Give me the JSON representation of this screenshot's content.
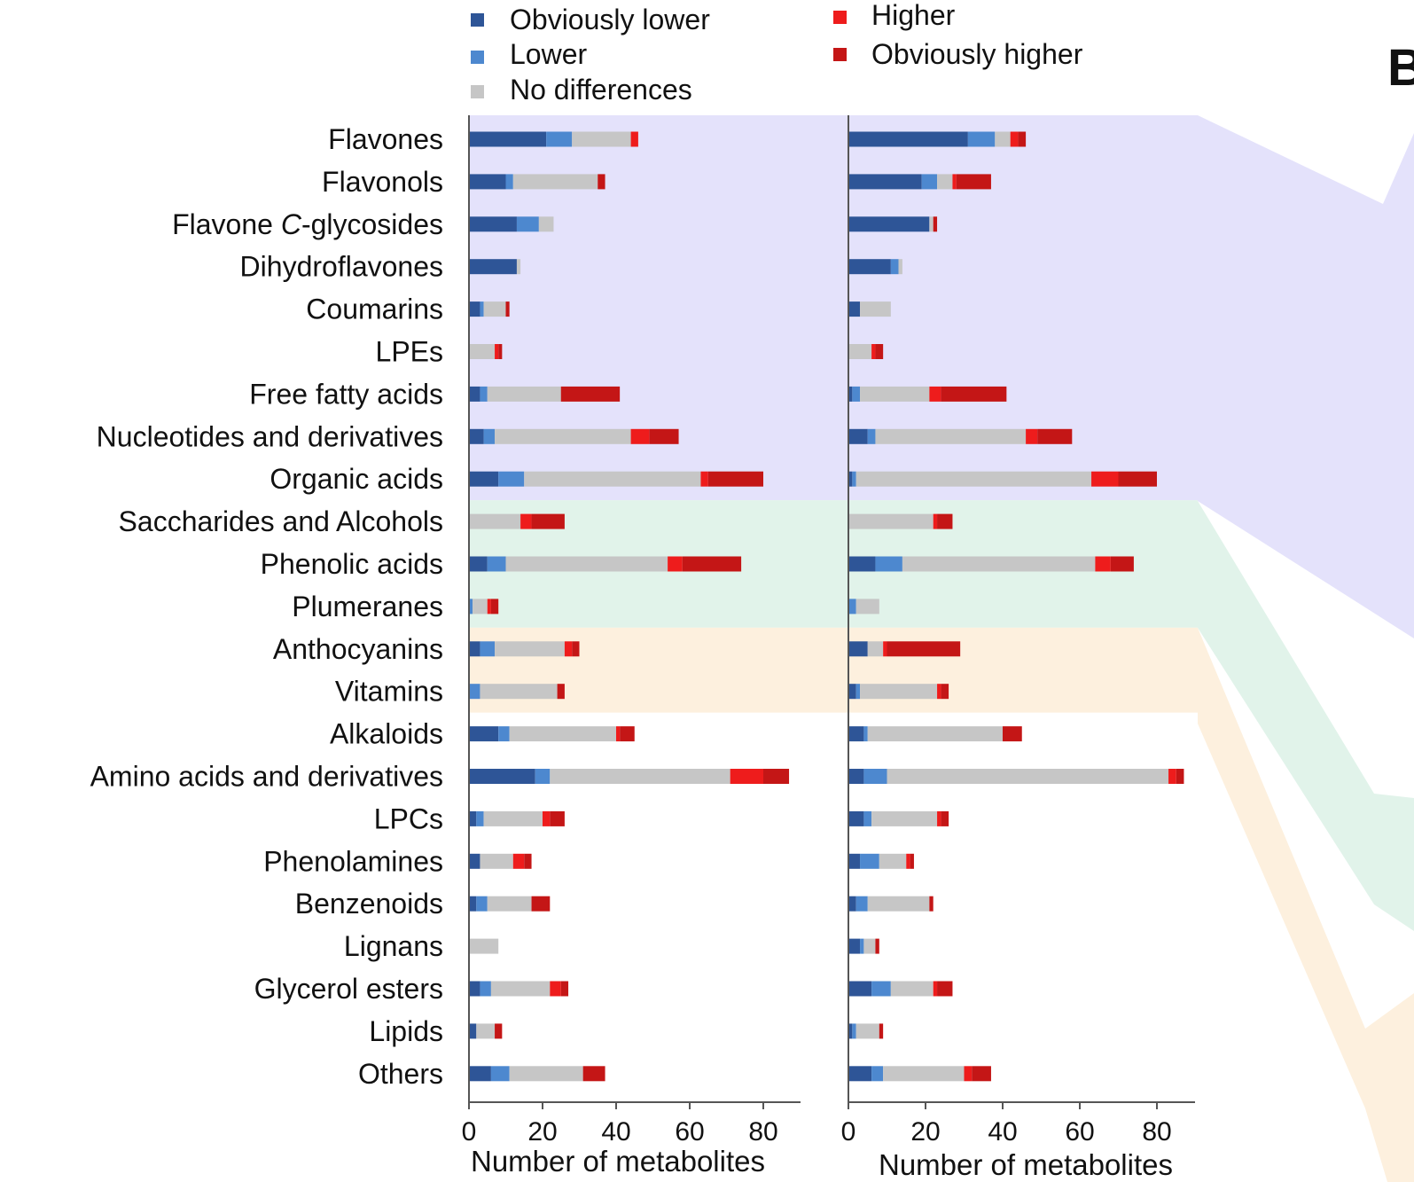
{
  "colors": {
    "obviously_lower": "#2e5597",
    "lower": "#4d88cf",
    "no_differences": "#c6c6c6",
    "higher": "#ee1c1c",
    "obviously_higher": "#c41616",
    "band_purple": "#e4e2fb",
    "band_green": "#e1f3ea",
    "band_orange": "#fdf0de"
  },
  "panel_letter": "B",
  "legend": [
    {
      "key": "obviously_lower",
      "label": "Obviously lower"
    },
    {
      "key": "lower",
      "label": "Lower"
    },
    {
      "key": "no_differences",
      "label": "No differences"
    },
    {
      "key": "higher",
      "label": "Higher"
    },
    {
      "key": "obviously_higher",
      "label": "Obviously higher"
    }
  ],
  "chart_data": [
    {
      "type": "bar",
      "orientation": "horizontal",
      "stacked": true,
      "xlabel": "Number of metabolites",
      "xlim": [
        0,
        90
      ],
      "xticks": [
        0,
        20,
        40,
        60,
        80
      ],
      "categories": [
        "Flavones",
        "Flavonols",
        "Flavone C-glycosides",
        "Dihydroflavones",
        "Coumarins",
        "LPEs",
        "Free fatty acids",
        "Nucleotides and derivatives",
        "Organic acids",
        "Saccharides and Alcohols",
        "Phenolic acids",
        "Plumeranes",
        "Anthocyanins",
        "Vitamins",
        "Alkaloids",
        "Amino acids and derivatives",
        "LPCs",
        "Phenolamines",
        "Benzenoids",
        "Lignans",
        "Glycerol esters",
        "Lipids",
        "Others"
      ],
      "series": [
        {
          "name": "Obviously lower",
          "values": [
            21,
            10,
            13,
            13,
            3,
            0,
            3,
            4,
            8,
            0,
            5,
            0,
            3,
            0,
            8,
            18,
            2,
            3,
            2,
            0,
            3,
            2,
            6
          ]
        },
        {
          "name": "Lower",
          "values": [
            7,
            2,
            6,
            0,
            1,
            0,
            2,
            3,
            7,
            0,
            5,
            1,
            4,
            3,
            3,
            4,
            2,
            0,
            3,
            0,
            3,
            0,
            5
          ]
        },
        {
          "name": "No differences",
          "values": [
            16,
            23,
            4,
            1,
            6,
            7,
            20,
            37,
            48,
            14,
            44,
            4,
            19,
            21,
            29,
            49,
            16,
            9,
            12,
            8,
            16,
            5,
            20
          ]
        },
        {
          "name": "Higher",
          "values": [
            2,
            0,
            0,
            0,
            0,
            1,
            0,
            5,
            2,
            3,
            4,
            1,
            2,
            0,
            1,
            9,
            2,
            3,
            0,
            0,
            3,
            0,
            0
          ]
        },
        {
          "name": "Obviously higher",
          "values": [
            0,
            2,
            0,
            0,
            1,
            1,
            16,
            8,
            15,
            9,
            16,
            2,
            2,
            2,
            4,
            7,
            4,
            2,
            5,
            0,
            2,
            2,
            6
          ]
        }
      ]
    },
    {
      "type": "bar",
      "orientation": "horizontal",
      "stacked": true,
      "xlabel": "Number of metabolites",
      "xlim": [
        0,
        90
      ],
      "xticks": [
        0,
        20,
        40,
        60,
        80
      ],
      "categories": [
        "Flavones",
        "Flavonols",
        "Flavone C-glycosides",
        "Dihydroflavones",
        "Coumarins",
        "LPEs",
        "Free fatty acids",
        "Nucleotides and derivatives",
        "Organic acids",
        "Saccharides and Alcohols",
        "Phenolic acids",
        "Plumeranes",
        "Anthocyanins",
        "Vitamins",
        "Alkaloids",
        "Amino acids and derivatives",
        "LPCs",
        "Phenolamines",
        "Benzenoids",
        "Lignans",
        "Glycerol esters",
        "Lipids",
        "Others"
      ],
      "series": [
        {
          "name": "Obviously lower",
          "values": [
            31,
            19,
            21,
            11,
            3,
            0,
            1,
            5,
            1,
            0,
            7,
            0,
            5,
            2,
            4,
            4,
            4,
            3,
            2,
            3,
            6,
            1,
            6
          ]
        },
        {
          "name": "Lower",
          "values": [
            7,
            4,
            0,
            2,
            0,
            0,
            2,
            2,
            1,
            0,
            7,
            2,
            0,
            1,
            1,
            6,
            2,
            5,
            3,
            1,
            5,
            1,
            3
          ]
        },
        {
          "name": "No differences",
          "values": [
            4,
            4,
            1,
            1,
            8,
            6,
            18,
            39,
            61,
            22,
            50,
            6,
            4,
            20,
            35,
            73,
            17,
            7,
            16,
            3,
            11,
            6,
            21
          ]
        },
        {
          "name": "Higher",
          "values": [
            2,
            1,
            0,
            0,
            0,
            1,
            3,
            3,
            7,
            1,
            4,
            0,
            1,
            1,
            0,
            2,
            1,
            1,
            0,
            0,
            1,
            0,
            2
          ]
        },
        {
          "name": "Obviously higher",
          "values": [
            2,
            9,
            1,
            0,
            0,
            2,
            17,
            9,
            10,
            4,
            6,
            0,
            19,
            2,
            5,
            2,
            2,
            1,
            1,
            1,
            4,
            1,
            5
          ]
        }
      ]
    }
  ]
}
